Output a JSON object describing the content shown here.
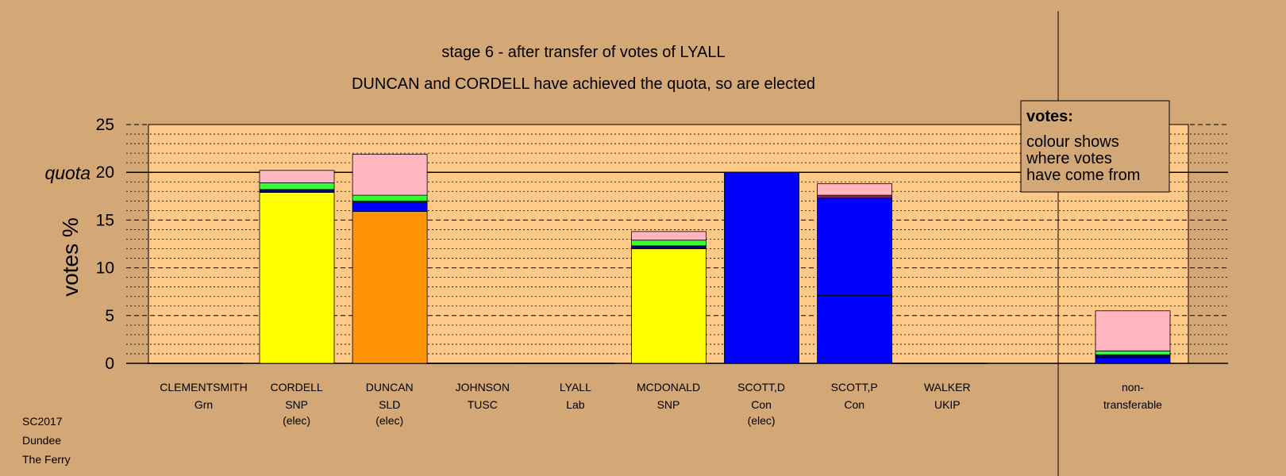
{
  "chart_data": {
    "type": "bar",
    "stacked": true,
    "title": "stage 6 - after transfer of votes of LYALL",
    "subtitle": "DUNCAN and CORDELL have achieved the quota, so are elected",
    "ylabel": "votes %",
    "quota_label": "quota",
    "quota": 20,
    "ylim": [
      0,
      25
    ],
    "yticks": [
      "0",
      "5",
      "10",
      "15",
      "20",
      "25"
    ],
    "legend": {
      "heading": "votes:",
      "lines": [
        "colour shows",
        "where votes",
        "have come from"
      ]
    },
    "candidates": [
      {
        "name": "CLEMENTSMITH",
        "party": "Grn",
        "status": "",
        "segments": []
      },
      {
        "name": "CORDELL",
        "party": "SNP",
        "status": "(elec)",
        "segments": [
          {
            "value": 17.9,
            "color": "#ffff00"
          },
          {
            "value": 0.3,
            "color": "#000080"
          },
          {
            "value": 0.7,
            "color": "#33ff33"
          },
          {
            "value": 1.3,
            "color": "#ffb6c1"
          }
        ]
      },
      {
        "name": "DUNCAN",
        "party": "SLD",
        "status": "(elec)",
        "segments": [
          {
            "value": 15.9,
            "color": "#ff9408"
          },
          {
            "value": 1.0,
            "color": "#0000ff"
          },
          {
            "value": 0.1,
            "color": "#ffff00"
          },
          {
            "value": 0.6,
            "color": "#33ff33"
          },
          {
            "value": 4.3,
            "color": "#ffb6c1"
          }
        ]
      },
      {
        "name": "JOHNSON",
        "party": "TUSC",
        "status": "",
        "segments": []
      },
      {
        "name": "LYALL",
        "party": "Lab",
        "status": "",
        "segments": []
      },
      {
        "name": "MCDONALD",
        "party": "SNP",
        "status": "",
        "segments": [
          {
            "value": 12.0,
            "color": "#ffff00"
          },
          {
            "value": 0.3,
            "color": "#000080"
          },
          {
            "value": 0.6,
            "color": "#33ff33"
          },
          {
            "value": 0.9,
            "color": "#ffb6c1"
          }
        ]
      },
      {
        "name": "SCOTT,D",
        "party": "Con",
        "status": "(elec)",
        "segments": [
          {
            "value": 20.0,
            "color": "#0000ff"
          }
        ]
      },
      {
        "name": "SCOTT,P",
        "party": "Con",
        "status": "",
        "segments": [
          {
            "value": 7.1,
            "color": "#0000ff"
          },
          {
            "value": 10.2,
            "color": "#0000ff"
          },
          {
            "value": 0.3,
            "color": "#8b2252"
          },
          {
            "value": 1.2,
            "color": "#ffb6c1"
          }
        ]
      },
      {
        "name": "WALKER",
        "party": "UKIP",
        "status": "",
        "segments": []
      }
    ],
    "nontransferable": {
      "label_line1": "non-",
      "label_line2": "transferable",
      "segments": [
        {
          "value": 0.6,
          "color": "#0000ff"
        },
        {
          "value": 0.3,
          "color": "#000080"
        },
        {
          "value": 0.4,
          "color": "#33ff33"
        },
        {
          "value": 4.2,
          "color": "#ffb6c1"
        }
      ]
    },
    "grid": true
  },
  "footer": {
    "line1": "SC2017",
    "line2": "Dundee",
    "line3": "The Ferry"
  }
}
